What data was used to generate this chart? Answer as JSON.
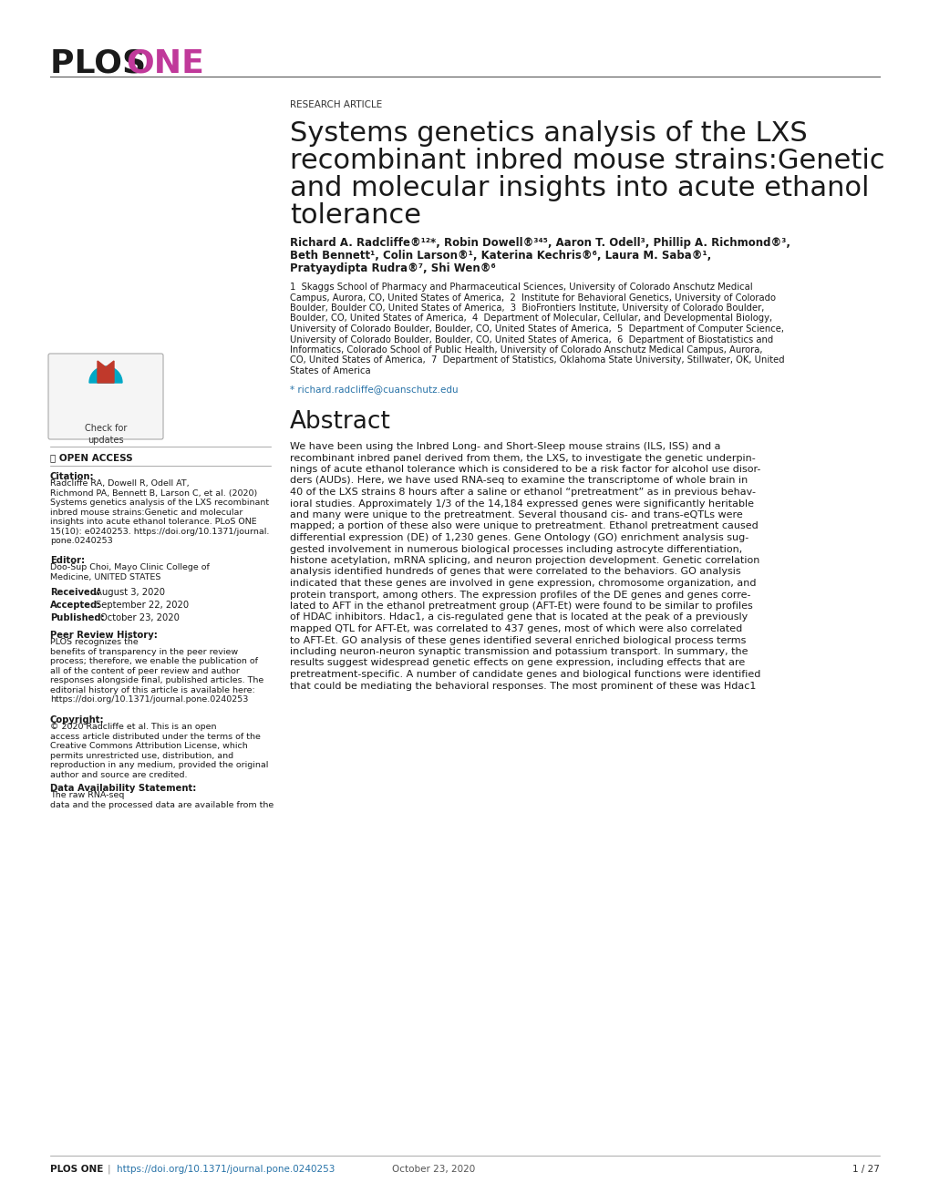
{
  "bg_color": "#ffffff",
  "header_plos": "PLOS ",
  "header_one": "ONE",
  "header_plos_color": "#1a1a1a",
  "header_one_color": "#c0399a",
  "header_line_color": "#555555",
  "research_article_label": "RESEARCH ARTICLE",
  "title_line1": "Systems genetics analysis of the LXS",
  "title_line2": "recombinant inbred mouse strains:Genetic",
  "title_line3": "and molecular insights into acute ethanol",
  "title_line4": "tolerance",
  "author_line1": "Richard A. Radcliffe®¹²*, Robin Dowell®³⁴⁵, Aaron T. Odell³, Phillip A. Richmond®³,",
  "author_line2": "Beth Bennett¹, Colin Larson®¹, Katerina Kechris®⁶, Laura M. Saba®¹,",
  "author_line3": "Pratyaydipta Rudra®⁷, Shi Wen®⁶",
  "aff_line1": "1  Skaggs School of Pharmacy and Pharmaceutical Sciences, University of Colorado Anschutz Medical",
  "aff_line2": "Campus, Aurora, CO, United States of America,  2  Institute for Behavioral Genetics, University of Colorado",
  "aff_line3": "Boulder, Boulder CO, United States of America,  3  BioFrontiers Institute, University of Colorado Boulder,",
  "aff_line4": "Boulder, CO, United States of America,  4  Department of Molecular, Cellular, and Developmental Biology,",
  "aff_line5": "University of Colorado Boulder, Boulder, CO, United States of America,  5  Department of Computer Science,",
  "aff_line6": "University of Colorado Boulder, Boulder, CO, United States of America,  6  Department of Biostatistics and",
  "aff_line7": "Informatics, Colorado School of Public Health, University of Colorado Anschutz Medical Campus, Aurora,",
  "aff_line8": "CO, United States of America,  7  Department of Statistics, Oklahoma State University, Stillwater, OK, United",
  "aff_line9": "States of America",
  "email": "* richard.radcliffe@cuanschutz.edu",
  "open_access": "OPEN ACCESS",
  "cite_label": "Citation:",
  "cite_line1": "Radcliffe RA, Dowell R, Odell AT,",
  "cite_line2": "Richmond PA, Bennett B, Larson C, et al. (2020)",
  "cite_line3": "Systems genetics analysis of the LXS recombinant",
  "cite_line4": "inbred mouse strains:Genetic and molecular",
  "cite_line5": "insights into acute ethanol tolerance. PLoS ONE",
  "cite_line6": "15(10): e0240253. https://doi.org/10.1371/journal.",
  "cite_line7": "pone.0240253",
  "editor_label": "Editor:",
  "editor_line1": "Doo-Sup Choi, Mayo Clinic College of",
  "editor_line2": "Medicine, UNITED STATES",
  "received_label": "Received:",
  "received_text": "August 3, 2020",
  "accepted_label": "Accepted:",
  "accepted_text": "September 22, 2020",
  "published_label": "Published:",
  "published_text": "October 23, 2020",
  "peer_label": "Peer Review History:",
  "peer_line1": "PLOS recognizes the",
  "peer_line2": "benefits of transparency in the peer review",
  "peer_line3": "process; therefore, we enable the publication of",
  "peer_line4": "all of the content of peer review and author",
  "peer_line5": "responses alongside final, published articles. The",
  "peer_line6": "editorial history of this article is available here:",
  "peer_line7": "https://doi.org/10.1371/journal.pone.0240253",
  "copy_label": "Copyright:",
  "copy_line1": "© 2020 Radcliffe et al. This is an open",
  "copy_line2": "access article distributed under the terms of the",
  "copy_line3": "Creative Commons Attribution License, which",
  "copy_line4": "permits unrestricted use, distribution, and",
  "copy_line5": "reproduction in any medium, provided the original",
  "copy_line6": "author and source are credited.",
  "data_label": "Data Availability Statement:",
  "data_line1": "The raw RNA-seq",
  "data_line2": "data and the processed data are available from the",
  "abstract_title": "Abstract",
  "abstract_line1": "We have been using the Inbred Long- and Short-Sleep mouse strains (ILS, ISS) and a",
  "abstract_line2": "recombinant inbred panel derived from them, the LXS, to investigate the genetic underpin-",
  "abstract_line3": "nings of acute ethanol tolerance which is considered to be a risk factor for alcohol use disor-",
  "abstract_line4": "ders (AUDs). Here, we have used RNA-seq to examine the transcriptome of whole brain in",
  "abstract_line5": "40 of the LXS strains 8 hours after a saline or ethanol “pretreatment” as in previous behav-",
  "abstract_line6": "ioral studies. Approximately 1/3 of the 14,184 expressed genes were significantly heritable",
  "abstract_line7": "and many were unique to the pretreatment. Several thousand cis- and trans-eQTLs were",
  "abstract_line8": "mapped; a portion of these also were unique to pretreatment. Ethanol pretreatment caused",
  "abstract_line9": "differential expression (DE) of 1,230 genes. Gene Ontology (GO) enrichment analysis sug-",
  "abstract_line10": "gested involvement in numerous biological processes including astrocyte differentiation,",
  "abstract_line11": "histone acetylation, mRNA splicing, and neuron projection development. Genetic correlation",
  "abstract_line12": "analysis identified hundreds of genes that were correlated to the behaviors. GO analysis",
  "abstract_line13": "indicated that these genes are involved in gene expression, chromosome organization, and",
  "abstract_line14": "protein transport, among others. The expression profiles of the DE genes and genes corre-",
  "abstract_line15": "lated to AFT in the ethanol pretreatment group (AFT-Et) were found to be similar to profiles",
  "abstract_line16": "of HDAC inhibitors. Hdac1, a cis-regulated gene that is located at the peak of a previously",
  "abstract_line17": "mapped QTL for AFT-Et, was correlated to 437 genes, most of which were also correlated",
  "abstract_line18": "to AFT-Et. GO analysis of these genes identified several enriched biological process terms",
  "abstract_line19": "including neuron-neuron synaptic transmission and potassium transport. In summary, the",
  "abstract_line20": "results suggest widespread genetic effects on gene expression, including effects that are",
  "abstract_line21": "pretreatment-specific. A number of candidate genes and biological functions were identified",
  "abstract_line22": "that could be mediating the behavioral responses. The most prominent of these was Hdac1",
  "footer_left": "PLOS ONE",
  "footer_link": "https://doi.org/10.1371/journal.pone.0240253",
  "footer_date": "October 23, 2020",
  "footer_page": "1 / 27"
}
